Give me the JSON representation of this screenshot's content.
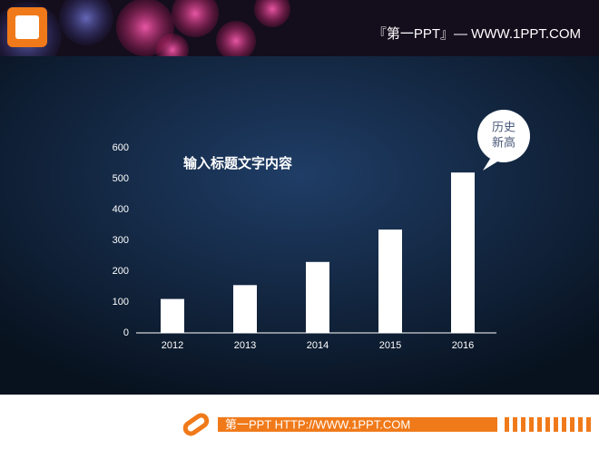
{
  "header": {
    "brand": "『第一PPT』— WWW.1PPT.COM"
  },
  "chart_data": {
    "type": "bar",
    "title": "输入标题文字内容",
    "categories": [
      "2012",
      "2013",
      "2014",
      "2015",
      "2016"
    ],
    "values": [
      110,
      155,
      230,
      335,
      520
    ],
    "color": "#ffffff",
    "ylim": [
      0,
      600
    ],
    "yticks": [
      0,
      100,
      200,
      300,
      400,
      500,
      600
    ],
    "grid": false,
    "annotation": [
      "历史",
      "新高"
    ]
  },
  "footer": {
    "text": "第一PPT HTTP://WWW.1PPT.COM"
  }
}
